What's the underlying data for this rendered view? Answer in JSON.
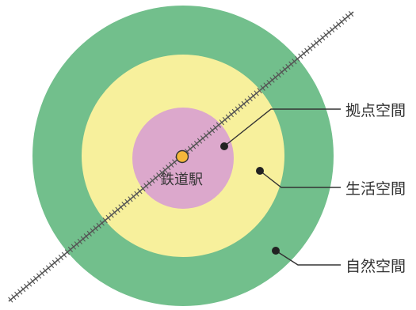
{
  "colors": {
    "outer_ring": "#72bf8c",
    "middle_ring": "#f7f09c",
    "inner_circle": "#dca8cc",
    "station_dot": "#f4b73a",
    "leader_line": "#333333",
    "track": "#555555"
  },
  "labels": {
    "station": "鉄道駅",
    "hub": "拠点空間",
    "living": "生活空間",
    "nature": "自然空間"
  },
  "icons": {
    "station": "station-dot-icon",
    "track": "railway-track-icon"
  }
}
